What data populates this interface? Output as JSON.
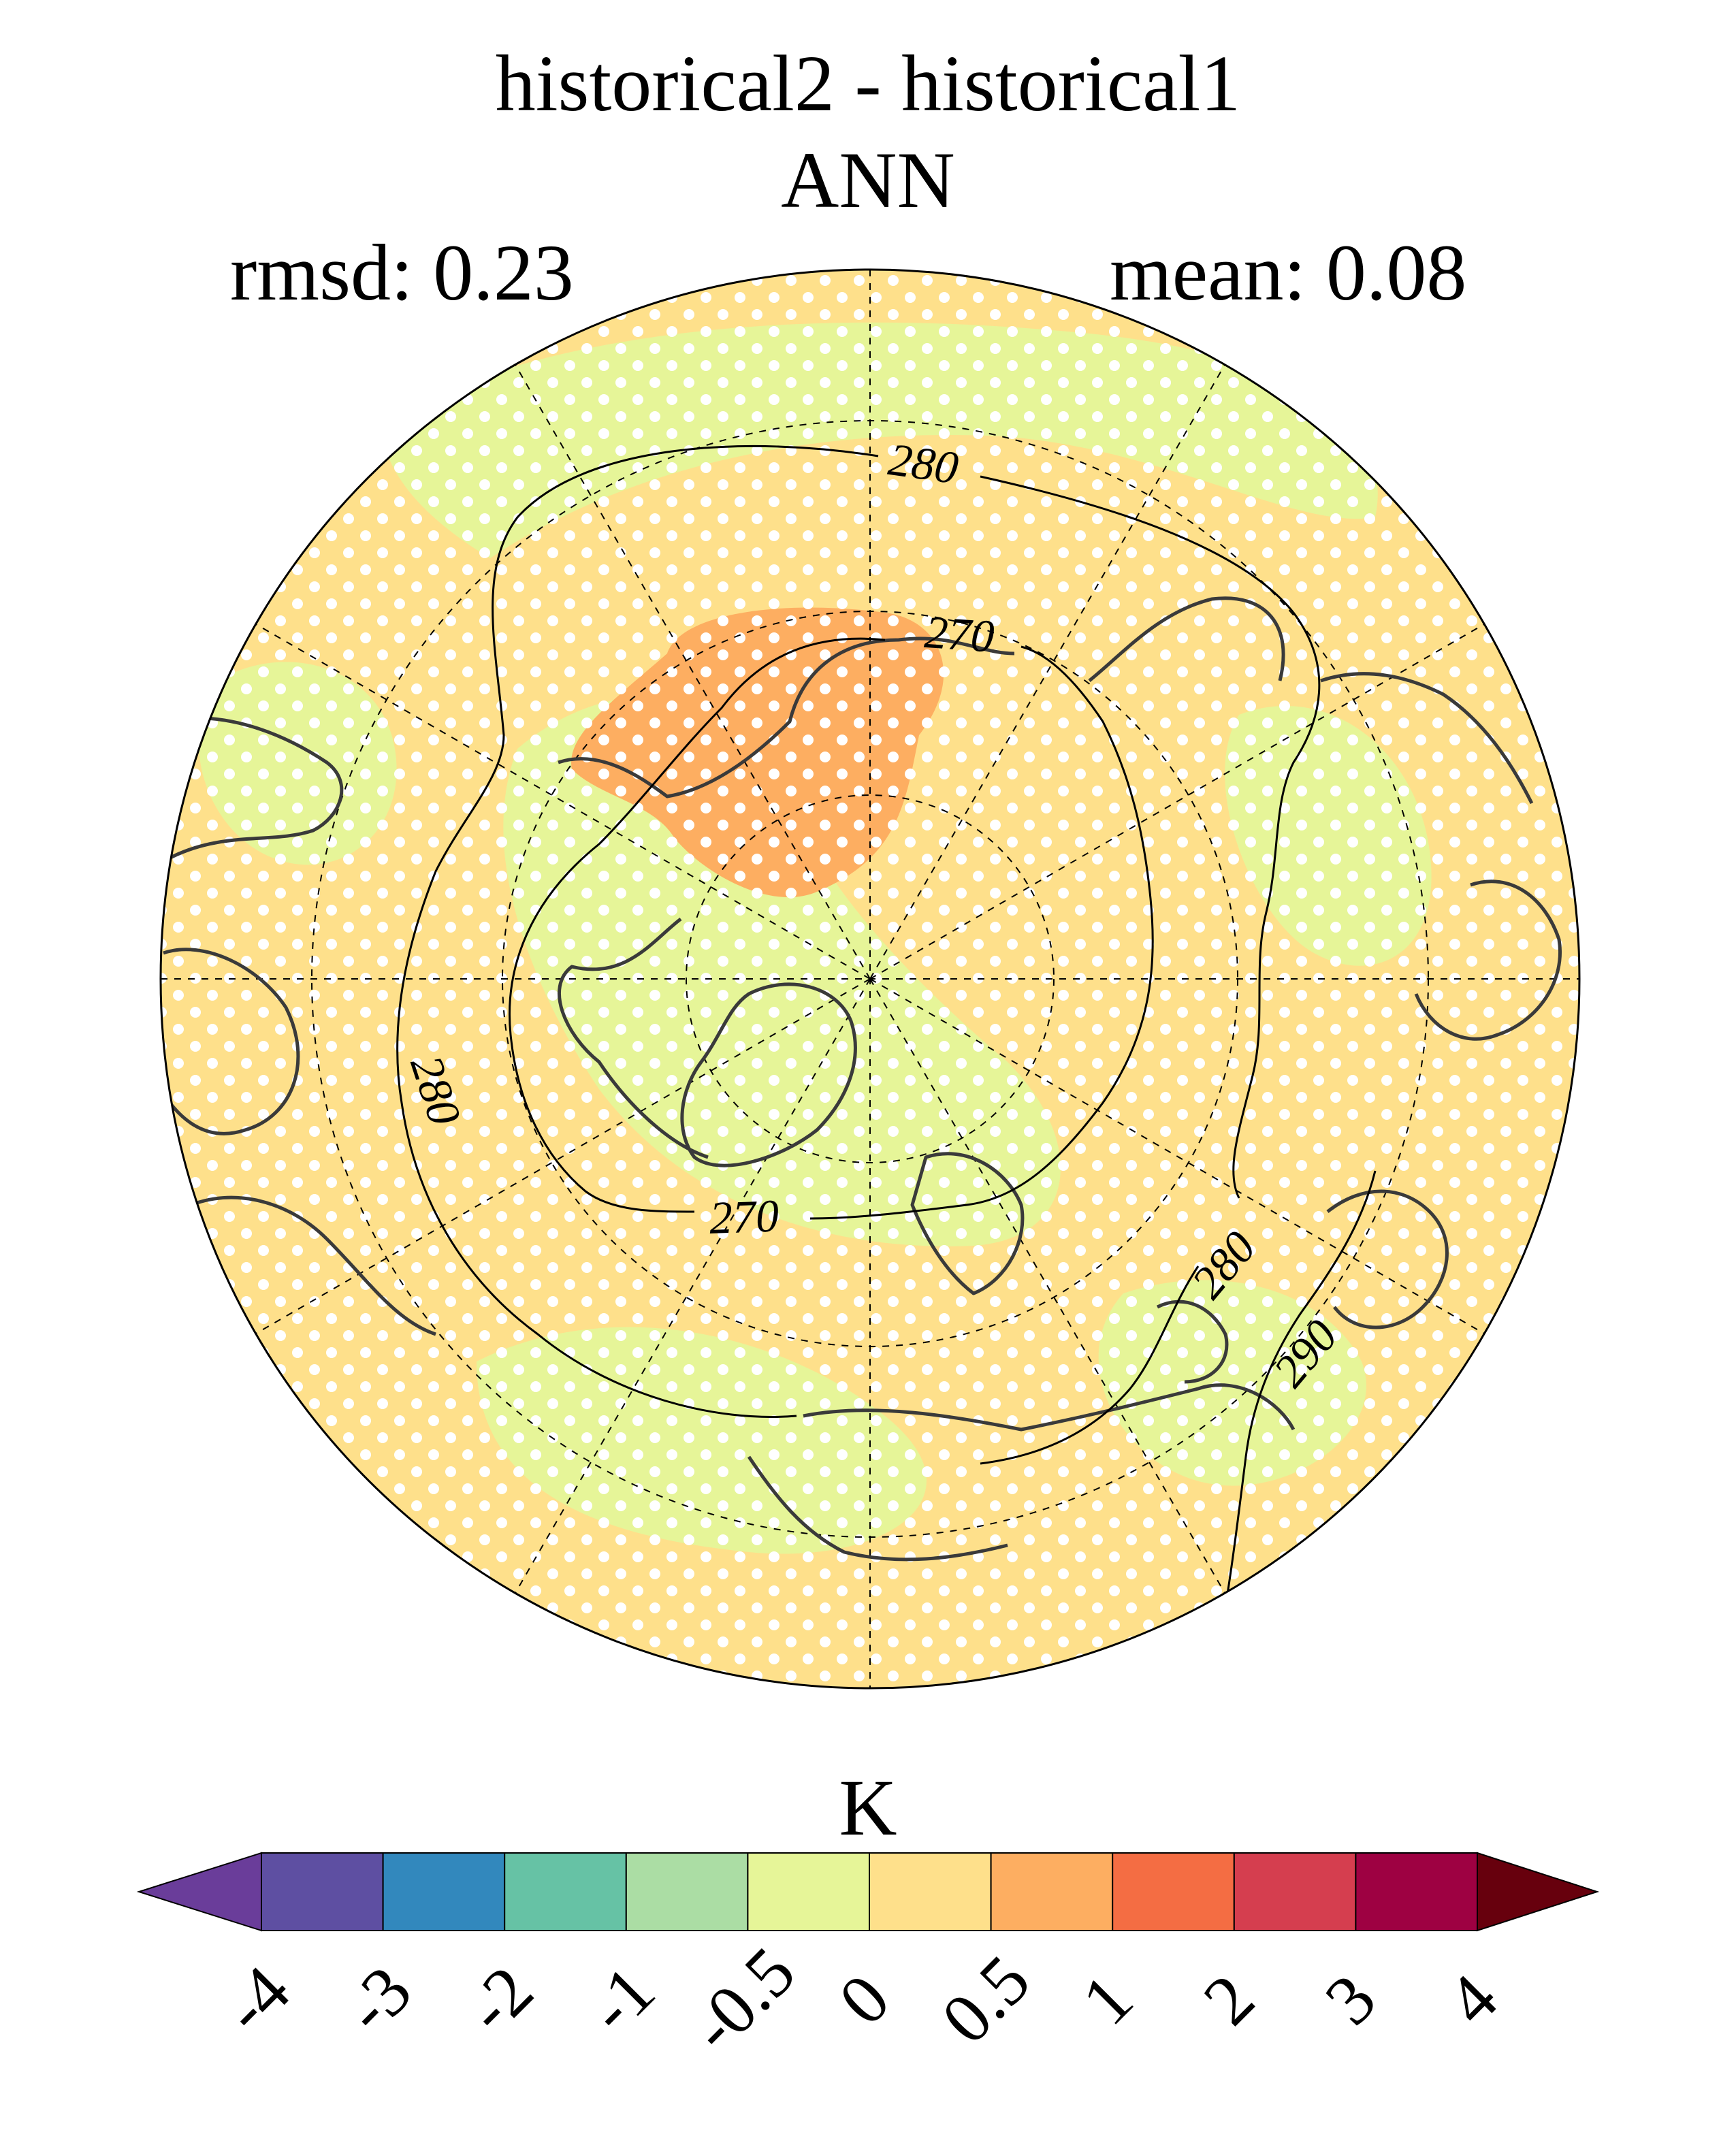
{
  "title_line1": "historical2 - historical1",
  "title_line2": "ANN",
  "rmsd_label": "rmsd: 0.23",
  "mean_label": "mean: 0.08",
  "colorbar": {
    "unit": "K",
    "ticks": [
      "-4",
      "-3",
      "-2",
      "-1",
      "-0.5",
      "0",
      "0.5",
      "1",
      "2",
      "3",
      "4"
    ],
    "colors": [
      "#5e4fa2",
      "#3288bd",
      "#66c2a5",
      "#abdda4",
      "#e6f598",
      "#fee08b",
      "#fdae61",
      "#f46d43",
      "#d53e4f",
      "#9e0142"
    ],
    "under_color": "#6a3d9a",
    "over_color": "#67000d"
  },
  "map": {
    "projection": "north-polar-stereographic",
    "contour_labels": [
      "280",
      "270",
      "280",
      "270",
      "280",
      "290"
    ],
    "fill_base": "#fee08b",
    "fill_light": "#e6f598",
    "fill_warm": "#fdae61",
    "coast_color": "#3a3a3a",
    "stipple": true
  }
}
